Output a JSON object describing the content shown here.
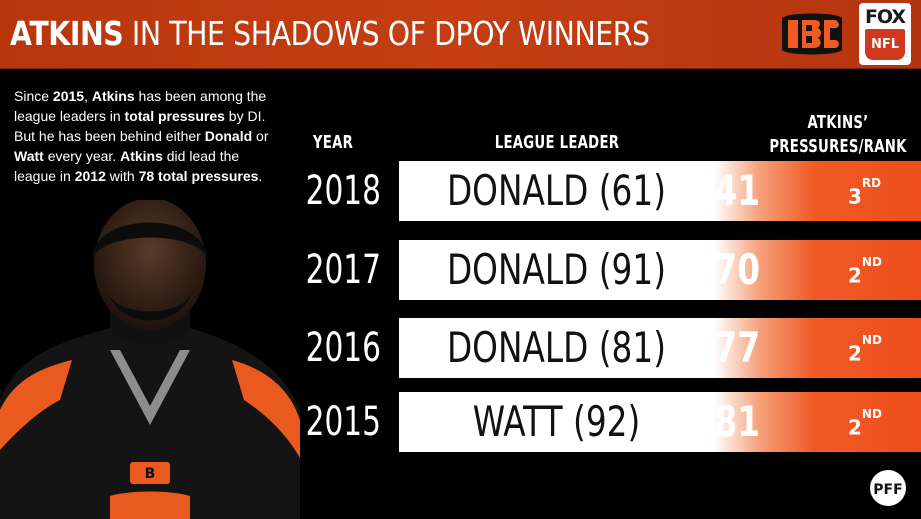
{
  "header": {
    "title_bold": "ATKINS",
    "title_rest": " IN THE SHADOWS OF DPOY WINNERS",
    "logo_fox": "FOX",
    "logo_nfl": "NFL"
  },
  "blurb": [
    {
      "text": "Since ",
      "bold": false
    },
    {
      "text": "2015",
      "bold": true
    },
    {
      "text": ", ",
      "bold": false
    },
    {
      "text": "Atkins",
      "bold": true
    },
    {
      "text": " has been among the league leaders in ",
      "bold": false
    },
    {
      "text": "total pressures",
      "bold": true
    },
    {
      "text": " by DI. But he has been behind either ",
      "bold": false
    },
    {
      "text": "Donald",
      "bold": true
    },
    {
      "text": " or ",
      "bold": false
    },
    {
      "text": "Watt",
      "bold": true
    },
    {
      "text": " every year. ",
      "bold": false
    },
    {
      "text": "Atkins",
      "bold": true
    },
    {
      "text": " did lead the league in ",
      "bold": false
    },
    {
      "text": "2012",
      "bold": true
    },
    {
      "text": " with ",
      "bold": false
    },
    {
      "text": "78 total pressures",
      "bold": true
    },
    {
      "text": ".",
      "bold": false
    }
  ],
  "columns": {
    "year": "YEAR",
    "leader": "LEAGUE LEADER",
    "pressures_line1": "ATKINS’",
    "pressures_line2": "PRESSURES/RANK"
  },
  "rows": [
    {
      "year": "2018",
      "leader": "DONALD (61)",
      "pressures": "41",
      "rank": "3",
      "rank_suffix": "RD"
    },
    {
      "year": "2017",
      "leader": "DONALD (91)",
      "pressures": "70",
      "rank": "2",
      "rank_suffix": "ND"
    },
    {
      "year": "2016",
      "leader": "DONALD (81)",
      "pressures": "77",
      "rank": "2",
      "rank_suffix": "ND"
    },
    {
      "year": "2015",
      "leader": "WATT (92)",
      "pressures": "81",
      "rank": "2",
      "rank_suffix": "ND"
    }
  ],
  "footer": {
    "pff_logo": "PFF"
  },
  "colors": {
    "header_bg": "#c43e12",
    "accent_orange": "#ee4e1c",
    "row_white": "#ffffff"
  }
}
